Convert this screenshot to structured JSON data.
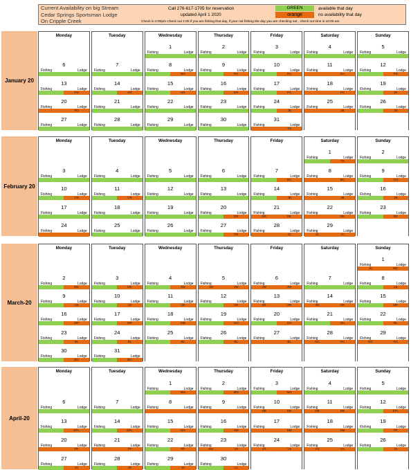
{
  "header": {
    "title1": "Current Availability on big Stream",
    "title2": "Cedar Springs Sportsman Lodge",
    "title3": "On Cripple Creek",
    "call": "Call 276-617-1705 for reservation",
    "updated": "updated   April 1 2020",
    "checkin": "Check in 4:00pm Check out 1:00 if you are fishing that day, if your not fishing the day you are checking out , check out time is 10:00 am",
    "green_label": "GREEN",
    "green_desc": "available that day",
    "orange_label": "orange",
    "orange_desc": "no availability that day"
  },
  "labels": {
    "fishing": "Fishing",
    "lodge": "Lodge"
  },
  "colors": {
    "green": "#8fd050",
    "orange": "#e56b12",
    "label_bg": "#f6be94",
    "header_bg": "#fbd5b5"
  },
  "days": [
    "Monday",
    "Tuesday",
    "Wednesday",
    "Thursday",
    "Friday",
    "Saturday",
    "Sunday"
  ],
  "months": [
    {
      "name": "January 20",
      "weeks": [
        [
          null,
          null,
          {
            "d": "1",
            "f": "G",
            "l": "G",
            "fc": "",
            "lc": ""
          },
          {
            "d": "2",
            "f": "G",
            "l": "G",
            "fc": "",
            "lc": ""
          },
          {
            "d": "3",
            "f": "G",
            "l": "G",
            "fc": "",
            "lc": ""
          },
          {
            "d": "4",
            "f": "G",
            "l": "G",
            "fc": "",
            "lc": ""
          },
          {
            "d": "5",
            "f": "G",
            "l": "G",
            "fc": "",
            "lc": ""
          }
        ],
        [
          {
            "d": "6",
            "f": "G",
            "l": "G",
            "fc": "",
            "lc": ""
          },
          {
            "d": "7",
            "f": "G",
            "l": "G",
            "fc": "",
            "lc": ""
          },
          {
            "d": "8",
            "f": "G",
            "l": "O",
            "fc": "",
            "lc": "MG"
          },
          {
            "d": "9",
            "f": "G",
            "l": "O",
            "fc": "",
            "lc": "RA"
          },
          {
            "d": "10",
            "f": "G",
            "l": "O",
            "fc": "",
            "lc": "RA"
          },
          {
            "d": "11",
            "f": "O",
            "l": "O",
            "fc": "",
            "lc": "RA"
          },
          {
            "d": "12",
            "f": "G",
            "l": "O",
            "fc": "",
            "lc": "PD"
          }
        ],
        [
          {
            "d": "13",
            "f": "G",
            "l": "O",
            "fc": "",
            "lc": "PD"
          },
          {
            "d": "14",
            "f": "G",
            "l": "O",
            "fc": "",
            "lc": "KR"
          },
          {
            "d": "15",
            "f": "G",
            "l": "O",
            "fc": "",
            "lc": "KR"
          },
          {
            "d": "16",
            "f": "G",
            "l": "O",
            "fc": "",
            "lc": "KR"
          },
          {
            "d": "17",
            "f": "G",
            "l": "O",
            "fc": "",
            "lc": "PC"
          },
          {
            "d": "18",
            "f": "O",
            "l": "O",
            "fc": "",
            "lc": "PC"
          },
          {
            "d": "19",
            "f": "G",
            "l": "O",
            "fc": "",
            "lc": "JR"
          }
        ],
        [
          {
            "d": "20",
            "f": "O",
            "l": "O",
            "fc": "",
            "lc": "PD"
          },
          {
            "d": "21",
            "f": "G",
            "l": "G",
            "fc": "",
            "lc": ""
          },
          {
            "d": "22",
            "f": "G",
            "l": "G",
            "fc": "",
            "lc": ""
          },
          {
            "d": "23",
            "f": "G",
            "l": "G",
            "fc": "",
            "lc": ""
          },
          {
            "d": "24",
            "f": "G",
            "l": "O",
            "fc": "",
            "lc": "JB"
          },
          {
            "d": "25",
            "f": "O",
            "l": "O",
            "fc": "",
            "lc": "JB"
          },
          {
            "d": "26",
            "f": "G",
            "l": "O",
            "fc": "",
            "lc": "JB"
          }
        ],
        [
          {
            "d": "27",
            "f": "G",
            "l": "G",
            "fc": "",
            "lc": ""
          },
          {
            "d": "28",
            "f": "G",
            "l": "G",
            "fc": "",
            "lc": ""
          },
          {
            "d": "29",
            "f": "G",
            "l": "G",
            "fc": "",
            "lc": ""
          },
          {
            "d": "30",
            "f": "G",
            "l": "G",
            "fc": "",
            "lc": ""
          },
          {
            "d": "31",
            "f": "O",
            "l": "O",
            "fc": "",
            "lc": "TG"
          },
          null,
          null
        ]
      ]
    },
    {
      "name": "February 20",
      "weeks": [
        [
          null,
          null,
          null,
          null,
          null,
          {
            "d": "1",
            "f": "G",
            "l": "O",
            "fc": "",
            "lc": "TG"
          },
          {
            "d": "2",
            "f": "G",
            "l": "G",
            "fc": "",
            "lc": ""
          }
        ],
        [
          {
            "d": "3",
            "f": "G",
            "l": "G",
            "fc": "",
            "lc": ""
          },
          {
            "d": "4",
            "f": "G",
            "l": "G",
            "fc": "",
            "lc": ""
          },
          {
            "d": "5",
            "f": "G",
            "l": "G",
            "fc": "",
            "lc": ""
          },
          {
            "d": "6",
            "f": "G",
            "l": "G",
            "fc": "",
            "lc": ""
          },
          {
            "d": "7",
            "f": "G",
            "l": "O",
            "fc": "",
            "lc": "BC"
          },
          {
            "d": "8",
            "f": "O",
            "l": "O",
            "fc": "",
            "lc": "BC"
          },
          {
            "d": "9",
            "f": "G",
            "l": "O",
            "fc": "",
            "lc": "CH"
          }
        ],
        [
          {
            "d": "10",
            "f": "G",
            "l": "O",
            "fc": "",
            "lc": "CR"
          },
          {
            "d": "11",
            "f": "G",
            "l": "O",
            "fc": "",
            "lc": "CR"
          },
          {
            "d": "12",
            "f": "G",
            "l": "G",
            "fc": "",
            "lc": ""
          },
          {
            "d": "13",
            "f": "G",
            "l": "G",
            "fc": "",
            "lc": ""
          },
          {
            "d": "14",
            "f": "G",
            "l": "O",
            "fc": "",
            "lc": "JB"
          },
          {
            "d": "15",
            "f": "O",
            "l": "O",
            "fc": "",
            "lc": "JB"
          },
          {
            "d": "16",
            "f": "G",
            "l": "O",
            "fc": "",
            "lc": "JB"
          }
        ],
        [
          {
            "d": "17",
            "f": "G",
            "l": "G",
            "fc": "",
            "lc": ""
          },
          {
            "d": "18",
            "f": "G",
            "l": "G",
            "fc": "",
            "lc": ""
          },
          {
            "d": "19",
            "f": "G",
            "l": "G",
            "fc": "",
            "lc": ""
          },
          {
            "d": "20",
            "f": "G",
            "l": "O",
            "fc": "",
            "lc": "DR"
          },
          {
            "d": "21",
            "f": "O",
            "l": "O",
            "fc": "DR",
            "lc": "RK"
          },
          {
            "d": "22",
            "f": "O",
            "l": "O",
            "fc": "",
            "lc": "RK"
          },
          {
            "d": "23",
            "f": "G",
            "l": "O",
            "fc": "",
            "lc": "RE"
          }
        ],
        [
          {
            "d": "24",
            "f": "O",
            "l": "O",
            "fc": "",
            "lc": ""
          },
          {
            "d": "25",
            "f": "G",
            "l": "G",
            "fc": "",
            "lc": ""
          },
          {
            "d": "26",
            "f": "G",
            "l": "G",
            "fc": "",
            "lc": ""
          },
          {
            "d": "27",
            "f": "G",
            "l": "O",
            "fc": "",
            "lc": "FB"
          },
          {
            "d": "28",
            "f": "O",
            "l": "O",
            "fc": "",
            "lc": "JC"
          },
          {
            "d": "29",
            "f": "O",
            "l": "O",
            "fc": "JC",
            "lc": "JC"
          },
          null
        ]
      ]
    },
    {
      "name": "March-20",
      "weeks": [
        [
          null,
          null,
          null,
          null,
          null,
          null,
          {
            "d": "1",
            "f": "O",
            "l": "O",
            "fc": "JC",
            "lc": "MC"
          }
        ],
        [
          {
            "d": "2",
            "f": "G",
            "l": "O",
            "fc": "",
            "lc": "MC"
          },
          {
            "d": "3",
            "f": "G",
            "l": "O",
            "fc": "",
            "lc": "MC"
          },
          {
            "d": "4",
            "f": "G",
            "l": "O",
            "fc": "",
            "lc": "JW"
          },
          {
            "d": "5",
            "f": "O",
            "l": "O",
            "fc": "JW",
            "lc": "JW"
          },
          {
            "d": "6",
            "f": "O",
            "l": "O",
            "fc": "JW",
            "lc": "JW"
          },
          {
            "d": "7",
            "f": "G",
            "l": "G",
            "fc": "",
            "lc": ""
          },
          {
            "d": "8",
            "f": "G",
            "l": "O",
            "fc": "",
            "lc": "LB"
          }
        ],
        [
          {
            "d": "9",
            "f": "G",
            "l": "O",
            "fc": "",
            "lc": "LB"
          },
          {
            "d": "10",
            "f": "G",
            "l": "O",
            "fc": "",
            "lc": "LB"
          },
          {
            "d": "11",
            "f": "G",
            "l": "O",
            "fc": "",
            "lc": "LB"
          },
          {
            "d": "12",
            "f": "G",
            "l": "O",
            "fc": "",
            "lc": "SR"
          },
          {
            "d": "13",
            "f": "O",
            "l": "O",
            "fc": "SR",
            "lc": "SR"
          },
          {
            "d": "14",
            "f": "O",
            "l": "O",
            "fc": "SR",
            "lc": "SR"
          },
          {
            "d": "15",
            "f": "G",
            "l": "O",
            "fc": "",
            "lc": "MP"
          }
        ],
        [
          {
            "d": "16",
            "f": "G",
            "l": "O",
            "fc": "",
            "lc": "MP"
          },
          {
            "d": "17",
            "f": "G",
            "l": "O",
            "fc": "",
            "lc": "MP"
          },
          {
            "d": "18",
            "f": "G",
            "l": "O",
            "fc": "",
            "lc": "MB"
          },
          {
            "d": "19",
            "f": "G",
            "l": "O",
            "fc": "",
            "lc": "GH"
          },
          {
            "d": "20",
            "f": "G",
            "l": "O",
            "fc": "",
            "lc": "GH"
          },
          {
            "d": "21",
            "f": "G",
            "l": "O",
            "fc": "",
            "lc": "GH"
          },
          {
            "d": "22",
            "f": "G",
            "l": "O",
            "fc": "",
            "lc": "BL"
          }
        ],
        [
          {
            "d": "23",
            "f": "G",
            "l": "O",
            "fc": "",
            "lc": "BL"
          },
          {
            "d": "24",
            "f": "G",
            "l": "O",
            "fc": "",
            "lc": "BL"
          },
          {
            "d": "25",
            "f": "G",
            "l": "O",
            "fc": "",
            "lc": "BL"
          },
          {
            "d": "26",
            "f": "G",
            "l": "O",
            "fc": "",
            "lc": "BL"
          },
          {
            "d": "27",
            "f": "O",
            "l": "O",
            "fc": "",
            "lc": "BL"
          },
          {
            "d": "28",
            "f": "O",
            "l": "O",
            "fc": "GC",
            "lc": "GC"
          },
          {
            "d": "29",
            "f": "O",
            "l": "O",
            "fc": "GC",
            "lc": "GC"
          }
        ],
        [
          {
            "d": "30",
            "f": "G",
            "l": "O",
            "fc": "",
            "lc": "BG"
          },
          {
            "d": "31",
            "f": "G",
            "l": "O",
            "fc": "",
            "lc": "BG"
          },
          null,
          null,
          null,
          null,
          null
        ]
      ]
    },
    {
      "name": "April-20",
      "weeks": [
        [
          null,
          null,
          {
            "d": "1",
            "f": "G",
            "l": "O",
            "fc": "",
            "lc": "MG"
          },
          {
            "d": "2",
            "f": "G",
            "l": "O",
            "fc": "",
            "lc": "MG"
          },
          {
            "d": "3",
            "f": "G",
            "l": "O",
            "fc": "",
            "lc": "MG"
          },
          {
            "d": "4",
            "f": "G",
            "l": "G",
            "fc": "",
            "lc": ""
          },
          {
            "d": "5",
            "f": "G",
            "l": "G",
            "fc": "",
            "lc": ""
          }
        ],
        [
          {
            "d": "6",
            "f": "G",
            "l": "G",
            "fc": "",
            "lc": ""
          },
          {
            "d": "7",
            "f": "G",
            "l": "G",
            "fc": "",
            "lc": ""
          },
          {
            "d": "8",
            "f": "O",
            "l": "O",
            "fc": "",
            "lc": ""
          },
          {
            "d": "9",
            "f": "O",
            "l": "O",
            "fc": "",
            "lc": ""
          },
          {
            "d": "10",
            "f": "O",
            "l": "O",
            "fc": "DB",
            "lc": "DB"
          },
          {
            "d": "11",
            "f": "O",
            "l": "O",
            "fc": "DB",
            "lc": "DB"
          },
          {
            "d": "12",
            "f": "G",
            "l": "O",
            "fc": "",
            "lc": "EFL"
          }
        ],
        [
          {
            "d": "13",
            "f": "G",
            "l": "O",
            "fc": "",
            "lc": "EFL"
          },
          {
            "d": "14",
            "f": "G",
            "l": "O",
            "fc": "",
            "lc": "EFL"
          },
          {
            "d": "15",
            "f": "G",
            "l": "O",
            "fc": "",
            "lc": "DH"
          },
          {
            "d": "16",
            "f": "G",
            "l": "O",
            "fc": "",
            "lc": "SM"
          },
          {
            "d": "17",
            "f": "O",
            "l": "O",
            "fc": "",
            "lc": "SM"
          },
          {
            "d": "18",
            "f": "O",
            "l": "O",
            "fc": "",
            "lc": "SM"
          },
          {
            "d": "19",
            "f": "G",
            "l": "O",
            "fc": "",
            "lc": "PF"
          }
        ],
        [
          {
            "d": "20",
            "f": "O",
            "l": "O",
            "fc": "",
            "lc": "PF"
          },
          {
            "d": "21",
            "f": "O",
            "l": "O",
            "fc": "",
            "lc": "PF"
          },
          {
            "d": "22",
            "f": "G",
            "l": "O",
            "fc": "",
            "lc": "PF"
          },
          {
            "d": "23",
            "f": "O",
            "l": "O",
            "fc": "SM",
            "lc": "VS"
          },
          {
            "d": "24",
            "f": "O",
            "l": "O",
            "fc": "VS",
            "lc": "VS"
          },
          {
            "d": "25",
            "f": "O",
            "l": "O",
            "fc": "VS",
            "lc": "VS"
          },
          {
            "d": "26",
            "f": "G",
            "l": "O",
            "fc": "",
            "lc": "JS"
          }
        ],
        [
          {
            "d": "27",
            "f": "G",
            "l": "O",
            "fc": "",
            "lc": "JS"
          },
          {
            "d": "28",
            "f": "G",
            "l": "O",
            "fc": "",
            "lc": "JS"
          },
          {
            "d": "29",
            "f": "G",
            "l": "O",
            "fc": "",
            "lc": "JS"
          },
          {
            "d": "30",
            "f": "G",
            "l": "O",
            "fc": "",
            "lc": "LC"
          },
          null,
          null,
          null
        ]
      ]
    }
  ]
}
